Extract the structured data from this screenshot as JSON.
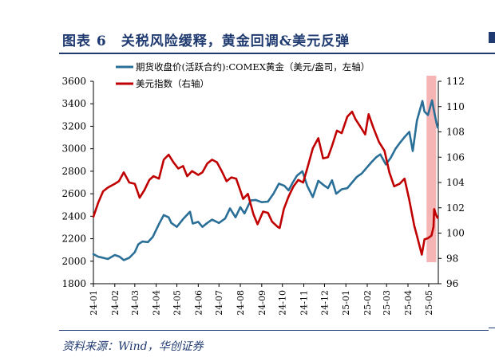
{
  "title": "图表 6　关税风险缓释，黄金回调&美元反弹",
  "source": "资料来源：Wind，华创证券",
  "colors": {
    "brand": "#1f3a70",
    "gold_series": "#2a6f97",
    "usd_series": "#c00000",
    "highlight": "#f5b5b5",
    "axis": "#000000"
  },
  "chart_data": {
    "type": "line",
    "x_ticks": [
      "24-01",
      "24-02",
      "24-03",
      "24-04",
      "24-05",
      "24-06",
      "24-07",
      "24-08",
      "24-09",
      "24-10",
      "24-11",
      "24-12",
      "25-01",
      "25-02",
      "25-03",
      "25-04",
      "25-05"
    ],
    "left_axis": {
      "min": 1800,
      "max": 3600,
      "ticks": [
        1800,
        2000,
        2200,
        2400,
        2600,
        2800,
        3000,
        3200,
        3400,
        3600
      ]
    },
    "right_axis": {
      "min": 96,
      "max": 112,
      "ticks": [
        96,
        98,
        100,
        102,
        104,
        106,
        108,
        110,
        112
      ]
    },
    "legend": [
      "期货收盘价(活跃合约):COMEX黄金（美元/盎司，左轴）",
      "美元指数（右轴）"
    ],
    "legend_placement": "top-left",
    "highlight_range": {
      "from": "2025-04-28",
      "to": "2025-05-12"
    },
    "series": [
      {
        "name": "期货收盘价(活跃合约):COMEX黄金（美元/盎司，左轴）",
        "axis": "left",
        "points": [
          [
            "2024-01-01",
            2063
          ],
          [
            "2024-01-08",
            2040
          ],
          [
            "2024-01-15",
            2030
          ],
          [
            "2024-01-22",
            2020
          ],
          [
            "2024-02-01",
            2055
          ],
          [
            "2024-02-08",
            2040
          ],
          [
            "2024-02-14",
            2010
          ],
          [
            "2024-02-22",
            2030
          ],
          [
            "2024-03-01",
            2080
          ],
          [
            "2024-03-06",
            2150
          ],
          [
            "2024-03-12",
            2175
          ],
          [
            "2024-03-20",
            2170
          ],
          [
            "2024-03-27",
            2215
          ],
          [
            "2024-04-05",
            2330
          ],
          [
            "2024-04-12",
            2410
          ],
          [
            "2024-04-19",
            2390
          ],
          [
            "2024-04-23",
            2340
          ],
          [
            "2024-05-01",
            2305
          ],
          [
            "2024-05-10",
            2375
          ],
          [
            "2024-05-20",
            2440
          ],
          [
            "2024-05-24",
            2335
          ],
          [
            "2024-06-01",
            2350
          ],
          [
            "2024-06-07",
            2305
          ],
          [
            "2024-06-14",
            2340
          ],
          [
            "2024-06-21",
            2370
          ],
          [
            "2024-07-01",
            2340
          ],
          [
            "2024-07-10",
            2380
          ],
          [
            "2024-07-17",
            2470
          ],
          [
            "2024-07-25",
            2390
          ],
          [
            "2024-08-01",
            2480
          ],
          [
            "2024-08-07",
            2425
          ],
          [
            "2024-08-16",
            2540
          ],
          [
            "2024-08-23",
            2545
          ],
          [
            "2024-09-01",
            2525
          ],
          [
            "2024-09-10",
            2530
          ],
          [
            "2024-09-18",
            2600
          ],
          [
            "2024-09-26",
            2690
          ],
          [
            "2024-10-04",
            2670
          ],
          [
            "2024-10-10",
            2630
          ],
          [
            "2024-10-16",
            2700
          ],
          [
            "2024-10-22",
            2760
          ],
          [
            "2024-10-30",
            2800
          ],
          [
            "2024-11-06",
            2670
          ],
          [
            "2024-11-14",
            2570
          ],
          [
            "2024-11-22",
            2715
          ],
          [
            "2024-11-29",
            2680
          ],
          [
            "2024-12-06",
            2650
          ],
          [
            "2024-12-12",
            2720
          ],
          [
            "2024-12-18",
            2600
          ],
          [
            "2024-12-26",
            2640
          ],
          [
            "2025-01-03",
            2650
          ],
          [
            "2025-01-10",
            2700
          ],
          [
            "2025-01-17",
            2750
          ],
          [
            "2025-01-24",
            2780
          ],
          [
            "2025-01-31",
            2830
          ],
          [
            "2025-02-07",
            2880
          ],
          [
            "2025-02-14",
            2925
          ],
          [
            "2025-02-20",
            2950
          ],
          [
            "2025-02-28",
            2860
          ],
          [
            "2025-03-07",
            2920
          ],
          [
            "2025-03-14",
            3000
          ],
          [
            "2025-03-20",
            3050
          ],
          [
            "2025-03-28",
            3110
          ],
          [
            "2025-04-03",
            3150
          ],
          [
            "2025-04-08",
            2980
          ],
          [
            "2025-04-14",
            3250
          ],
          [
            "2025-04-22",
            3425
          ],
          [
            "2025-04-25",
            3330
          ],
          [
            "2025-04-30",
            3300
          ],
          [
            "2025-05-06",
            3430
          ],
          [
            "2025-05-09",
            3330
          ],
          [
            "2025-05-12",
            3240
          ],
          [
            "2025-05-14",
            3190
          ]
        ]
      },
      {
        "name": "美元指数（右轴）",
        "axis": "right",
        "points": [
          [
            "2024-01-01",
            101.3
          ],
          [
            "2024-01-08",
            102.4
          ],
          [
            "2024-01-15",
            103.3
          ],
          [
            "2024-01-22",
            103.6
          ],
          [
            "2024-02-01",
            103.9
          ],
          [
            "2024-02-07",
            104.1
          ],
          [
            "2024-02-14",
            104.8
          ],
          [
            "2024-02-22",
            104.0
          ],
          [
            "2024-03-01",
            103.9
          ],
          [
            "2024-03-08",
            102.8
          ],
          [
            "2024-03-15",
            103.4
          ],
          [
            "2024-03-22",
            104.2
          ],
          [
            "2024-03-28",
            104.5
          ],
          [
            "2024-04-05",
            104.3
          ],
          [
            "2024-04-12",
            105.8
          ],
          [
            "2024-04-19",
            106.2
          ],
          [
            "2024-04-26",
            105.6
          ],
          [
            "2024-05-03",
            105.1
          ],
          [
            "2024-05-10",
            105.3
          ],
          [
            "2024-05-16",
            104.5
          ],
          [
            "2024-05-23",
            104.9
          ],
          [
            "2024-06-01",
            104.6
          ],
          [
            "2024-06-07",
            104.8
          ],
          [
            "2024-06-14",
            105.5
          ],
          [
            "2024-06-21",
            105.8
          ],
          [
            "2024-06-28",
            105.6
          ],
          [
            "2024-07-05",
            104.9
          ],
          [
            "2024-07-12",
            104.1
          ],
          [
            "2024-07-19",
            104.4
          ],
          [
            "2024-07-26",
            104.3
          ],
          [
            "2024-08-02",
            103.2
          ],
          [
            "2024-08-05",
            102.7
          ],
          [
            "2024-08-12",
            103.1
          ],
          [
            "2024-08-20",
            101.5
          ],
          [
            "2024-08-26",
            100.7
          ],
          [
            "2024-09-03",
            101.7
          ],
          [
            "2024-09-10",
            101.6
          ],
          [
            "2024-09-16",
            100.9
          ],
          [
            "2024-09-24",
            100.5
          ],
          [
            "2024-09-27",
            100.4
          ],
          [
            "2024-10-03",
            101.9
          ],
          [
            "2024-10-10",
            102.9
          ],
          [
            "2024-10-17",
            103.7
          ],
          [
            "2024-10-24",
            104.2
          ],
          [
            "2024-10-31",
            104.0
          ],
          [
            "2024-11-06",
            105.1
          ],
          [
            "2024-11-14",
            106.7
          ],
          [
            "2024-11-22",
            107.5
          ],
          [
            "2024-11-29",
            105.9
          ],
          [
            "2024-12-06",
            106.0
          ],
          [
            "2024-12-12",
            106.9
          ],
          [
            "2024-12-19",
            108.1
          ],
          [
            "2024-12-26",
            107.9
          ],
          [
            "2025-01-03",
            109.2
          ],
          [
            "2025-01-10",
            109.6
          ],
          [
            "2025-01-15",
            109.0
          ],
          [
            "2025-01-22",
            108.4
          ],
          [
            "2025-01-29",
            107.8
          ],
          [
            "2025-02-03",
            109.4
          ],
          [
            "2025-02-10",
            108.3
          ],
          [
            "2025-02-18",
            107.2
          ],
          [
            "2025-02-26",
            106.5
          ],
          [
            "2025-03-05",
            104.8
          ],
          [
            "2025-03-12",
            103.7
          ],
          [
            "2025-03-20",
            103.9
          ],
          [
            "2025-03-27",
            104.3
          ],
          [
            "2025-04-03",
            102.6
          ],
          [
            "2025-04-10",
            100.6
          ],
          [
            "2025-04-14",
            99.8
          ],
          [
            "2025-04-21",
            98.3
          ],
          [
            "2025-04-25",
            99.5
          ],
          [
            "2025-04-30",
            99.6
          ],
          [
            "2025-05-05",
            99.8
          ],
          [
            "2025-05-08",
            100.5
          ],
          [
            "2025-05-09",
            101.9
          ],
          [
            "2025-05-12",
            101.4
          ],
          [
            "2025-05-14",
            101.2
          ]
        ]
      }
    ]
  }
}
